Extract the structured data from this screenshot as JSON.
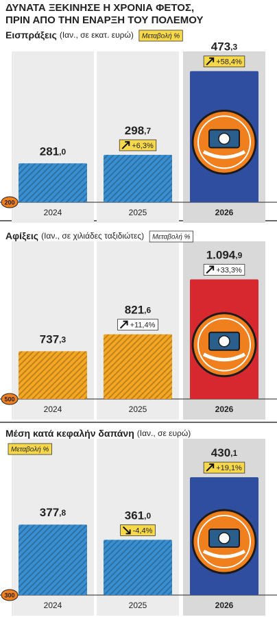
{
  "title": [
    "ΔΥΝΑΤΑ ΞΕΚΙΝΗΣΕ Η ΧΡΟΝΙΑ ΦΕΤΟΣ,",
    "ΠΡΙΝ ΑΠΟ ΤΗΝ ΕΝΑΡΞΗ ΤΟΥ ΠΟΛΕΜΟΥ"
  ],
  "chart_data": [
    {
      "type": "bar",
      "title": "Εισπράξεις",
      "subtitle": "(Ιαν., σε εκατ. ευρώ)",
      "legend": "Μεταβολή %",
      "categories": [
        "2024",
        "2025",
        "2026"
      ],
      "values": [
        281.0,
        298.7,
        473.3
      ],
      "value_labels": [
        "281,0",
        "298,7",
        "473,3"
      ],
      "changes": [
        null,
        6.3,
        58.4
      ],
      "change_labels": [
        null,
        "+6,3%",
        "+58,4%"
      ],
      "colors": [
        "#3a8fd2",
        "#3a8fd2",
        "#2f4ea0"
      ],
      "hatch": [
        true,
        true,
        false
      ],
      "change_box_color": "#f6d84a",
      "ylim": [
        200,
        500
      ],
      "yticks": [
        200
      ]
    },
    {
      "type": "bar",
      "title": "Αφίξεις",
      "subtitle": "(Ιαν., σε χιλιάδες ταξιδιώτες)",
      "legend": "Μεταβολή %",
      "categories": [
        "2024",
        "2025",
        "2026"
      ],
      "values": [
        737.3,
        821.6,
        1094.9
      ],
      "value_labels": [
        "737,3",
        "821,6",
        "1.094,9"
      ],
      "changes": [
        null,
        11.4,
        33.3
      ],
      "change_labels": [
        null,
        "+11,4%",
        "+33,3%"
      ],
      "colors": [
        "#f5a623",
        "#f5a623",
        "#d7282f"
      ],
      "hatch": [
        true,
        true,
        false
      ],
      "change_box_color": "#ffffff",
      "ylim": [
        500,
        1250
      ],
      "yticks": [
        500
      ]
    },
    {
      "type": "bar",
      "title": "Μέση κατά κεφαλήν δαπάνη",
      "subtitle": "(Ιαν., σε ευρώ)",
      "legend": "Μεταβολή %",
      "categories": [
        "2024",
        "2025",
        "2026"
      ],
      "values": [
        377.8,
        361.0,
        430.1
      ],
      "value_labels": [
        "377,8",
        "361,0",
        "430,1"
      ],
      "changes": [
        null,
        -4.4,
        19.1
      ],
      "change_labels": [
        null,
        "-4,4%",
        "+19,1%"
      ],
      "colors": [
        "#3a8fd2",
        "#3a8fd2",
        "#2f4ea0"
      ],
      "hatch": [
        true,
        true,
        false
      ],
      "change_box_color": "#f6d84a",
      "ylim": [
        300,
        465
      ],
      "yticks": [
        300
      ]
    }
  ]
}
